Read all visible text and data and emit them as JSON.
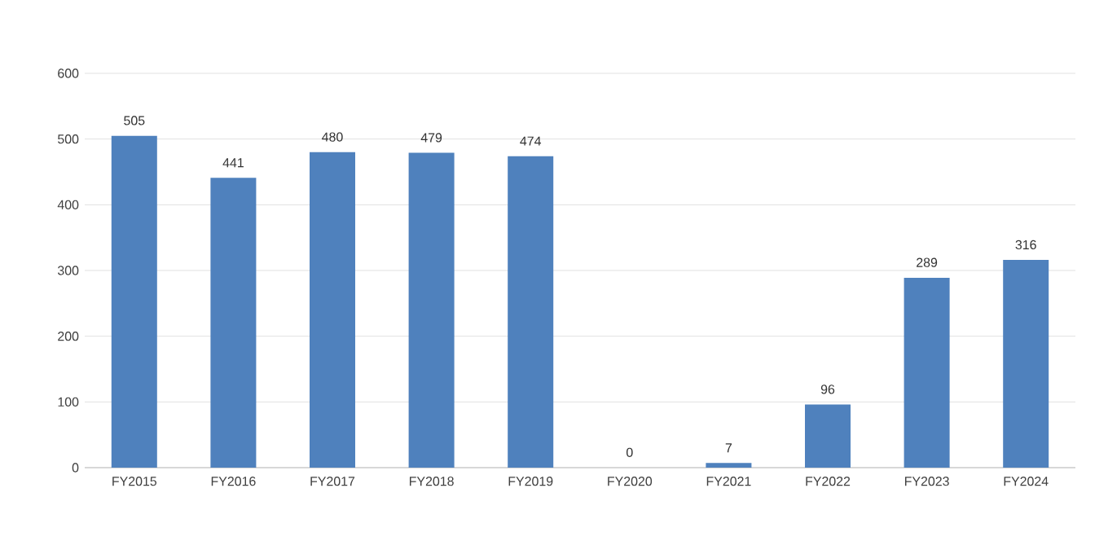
{
  "chart_data": {
    "type": "bar",
    "categories": [
      "FY2015",
      "FY2016",
      "FY2017",
      "FY2018",
      "FY2019",
      "FY2020",
      "FY2021",
      "FY2022",
      "FY2023",
      "FY2024"
    ],
    "values": [
      505,
      441,
      480,
      479,
      474,
      0,
      7,
      96,
      289,
      316
    ],
    "color": "#4f81bd",
    "ylim": [
      0,
      600
    ],
    "yticks": [
      0,
      100,
      200,
      300,
      400,
      500,
      600
    ],
    "grid": "y",
    "data_labels": true
  }
}
